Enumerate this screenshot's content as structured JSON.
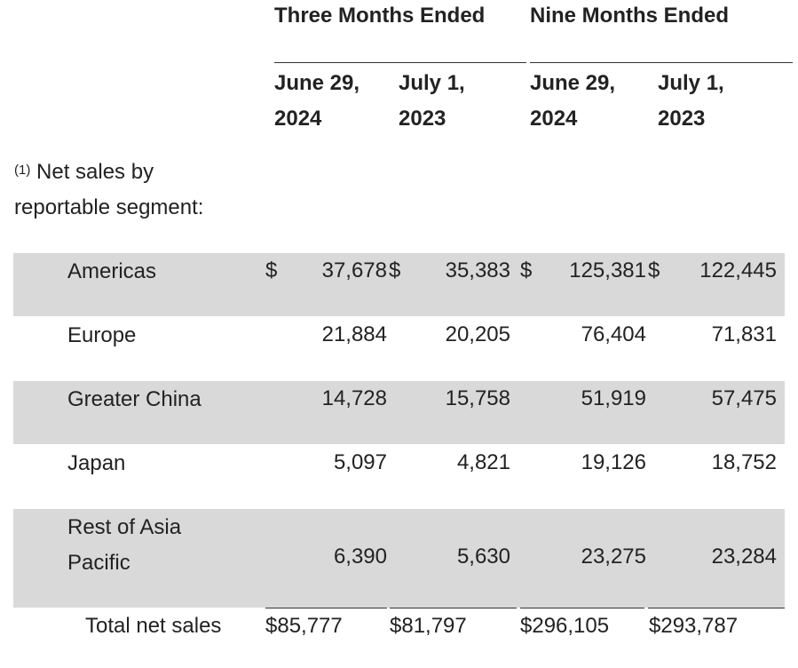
{
  "header": {
    "three_months": "Three Months Ended",
    "nine_months": "Nine Months Ended",
    "cols": [
      {
        "line1": "June 29,",
        "line2": "2024"
      },
      {
        "line1": "July 1,",
        "line2": "2023"
      },
      {
        "line1": "June 29,",
        "line2": "2024"
      },
      {
        "line1": "July 1,",
        "line2": "2023"
      }
    ]
  },
  "note": {
    "marker": "(1)",
    "line1": "Net sales by",
    "line2": "reportable segment:"
  },
  "rows": [
    {
      "label": "Americas",
      "values": [
        "37,678",
        "35,383",
        "125,381",
        "122,445"
      ],
      "currency": "$"
    },
    {
      "label": "Europe",
      "values": [
        "21,884",
        "20,205",
        "76,404",
        "71,831"
      ]
    },
    {
      "label": "Greater China",
      "values": [
        "14,728",
        "15,758",
        "51,919",
        "57,475"
      ]
    },
    {
      "label": "Japan",
      "values": [
        "5,097",
        "4,821",
        "19,126",
        "18,752"
      ]
    },
    {
      "label_line1": "Rest of Asia",
      "label_line2": "Pacific",
      "values": [
        "6,390",
        "5,630",
        "23,275",
        "23,284"
      ]
    }
  ],
  "total": {
    "label": "Total net sales",
    "values": [
      "$85,777",
      "$81,797",
      "$296,105",
      "$293,787"
    ]
  },
  "colors": {
    "band": "#d9d9d9",
    "text": "#222222",
    "rule": "#333333"
  }
}
